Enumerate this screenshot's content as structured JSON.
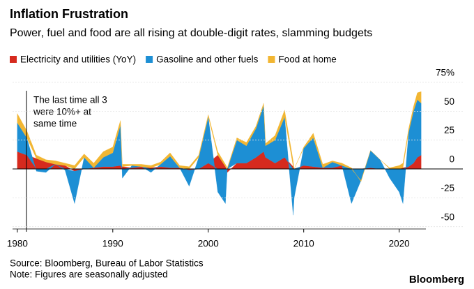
{
  "chart_data": {
    "type": "area",
    "title": "Inflation Frustration",
    "subtitle": "Power, fuel and food are all rising at double-digit rates, slamming budgets",
    "annotation": [
      "The last time all 3",
      "were 10%+ at",
      "same time"
    ],
    "source": "Source: Bloomberg, Bureau of Labor Statistics",
    "note": "Note: Figures are seasonally adjusted",
    "brand": "Bloomberg",
    "stacked": true,
    "grid": true,
    "x": [
      1980,
      1981,
      1982,
      1983,
      1984,
      1985,
      1986,
      1987,
      1988,
      1989,
      1990,
      1990.8,
      1991,
      1992,
      1993,
      1994,
      1995,
      1996,
      1997,
      1998,
      1999,
      2000,
      2001,
      2001.8,
      2002,
      2003,
      2004,
      2005,
      2005.8,
      2006,
      2007,
      2008,
      2008.9,
      2009,
      2010,
      2011,
      2012,
      2013,
      2014,
      2015,
      2016,
      2017,
      2018,
      2019,
      2020,
      2020.4,
      2021,
      2021.5,
      2021.9,
      2022.3
    ],
    "series": [
      {
        "name": "Electricity and utilities (YoY)",
        "color": "#d62a1e",
        "values": [
          15,
          12,
          9,
          6,
          4,
          3,
          -2,
          0,
          1,
          2,
          2,
          3,
          2,
          1,
          2,
          1,
          2,
          1,
          1,
          -1,
          0,
          5,
          12,
          2,
          -3,
          5,
          5,
          10,
          15,
          10,
          5,
          10,
          2,
          0,
          3,
          2,
          1,
          1,
          3,
          0,
          0,
          1,
          0,
          0,
          0,
          1,
          2,
          5,
          10,
          12
        ]
      },
      {
        "name": "Gasoline and other fuels",
        "color": "#1d8fd4",
        "values": [
          25,
          15,
          -2,
          -3,
          0,
          -1,
          -28,
          10,
          0,
          8,
          12,
          35,
          -8,
          2,
          0,
          -3,
          2,
          10,
          0,
          -14,
          10,
          40,
          -20,
          -30,
          0,
          20,
          15,
          25,
          40,
          10,
          20,
          35,
          -40,
          -25,
          15,
          25,
          0,
          5,
          0,
          -30,
          -10,
          15,
          8,
          -8,
          -20,
          -30,
          30,
          45,
          50,
          45
        ]
      },
      {
        "name": "Food at home",
        "color": "#f2b632",
        "values": [
          8,
          6,
          3,
          2,
          3,
          2,
          3,
          3,
          4,
          5,
          5,
          4,
          2,
          1,
          2,
          2,
          2,
          3,
          2,
          2,
          2,
          2,
          3,
          2,
          1,
          2,
          3,
          2,
          2,
          2,
          4,
          6,
          5,
          0,
          1,
          4,
          3,
          1,
          2,
          1,
          -1,
          0,
          0,
          1,
          3,
          4,
          3,
          4,
          6,
          10
        ]
      }
    ],
    "xlim": [
      1979.5,
      2022.8
    ],
    "xticks": [
      1980,
      1990,
      2000,
      2010,
      2020
    ],
    "ylim": [
      -52,
      75
    ],
    "yticks": [
      {
        "value": 75,
        "label": "75%"
      },
      50,
      25,
      0,
      -25,
      -50
    ]
  }
}
